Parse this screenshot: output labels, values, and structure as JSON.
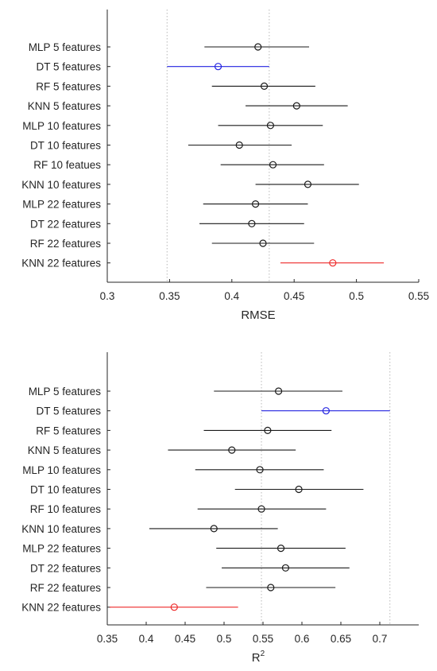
{
  "colors": {
    "default": "#1a1a1a",
    "highlight_best": "#2222e0",
    "highlight_worst": "#ee2a2a",
    "axis": "#262626",
    "reference_line": "#b8b8b8"
  },
  "chart_data": [
    {
      "type": "errorbar",
      "orientation": "horizontal",
      "xlabel": "RMSE",
      "xlim": [
        0.3,
        0.55
      ],
      "xticks": [
        "0.3",
        "0.35",
        "0.4",
        "0.45",
        "0.5",
        "0.55"
      ],
      "reference_lines": [
        0.348,
        0.43
      ],
      "categories": [
        "MLP 5 features",
        "DT 5 features",
        "RF 5 features",
        "KNN 5 features",
        "MLP 10 features",
        "DT 10 features",
        "RF 10 featues",
        "KNN 10 features",
        "MLP 22 features",
        "DT 22 features",
        "RF 22 features",
        "KNN 22 features"
      ],
      "means": [
        0.421,
        0.389,
        0.426,
        0.452,
        0.431,
        0.406,
        0.433,
        0.461,
        0.419,
        0.416,
        0.425,
        0.481
      ],
      "lower": [
        0.378,
        0.348,
        0.384,
        0.411,
        0.389,
        0.365,
        0.391,
        0.419,
        0.377,
        0.374,
        0.384,
        0.439
      ],
      "upper": [
        0.462,
        0.43,
        0.467,
        0.493,
        0.473,
        0.448,
        0.474,
        0.502,
        0.461,
        0.458,
        0.466,
        0.522
      ],
      "highlight": {
        "DT 5 features": "best",
        "KNN 22 features": "worst"
      }
    },
    {
      "type": "errorbar",
      "orientation": "horizontal",
      "xlabel": "R",
      "xlabel_superscript": "2",
      "xlim": [
        0.35,
        0.75
      ],
      "xticks": [
        "0.35",
        "0.4",
        "0.45",
        "0.5",
        "0.55",
        "0.6",
        "0.65",
        "0.7"
      ],
      "reference_lines": [
        0.548,
        0.713
      ],
      "categories": [
        "MLP 5 features",
        "DT 5 features",
        "RF 5 features",
        "KNN 5 features",
        "MLP 10 features",
        "DT 10 features",
        "RF 10 features",
        "KNN 10 features",
        "MLP 22 features",
        "DT 22 features",
        "RF 22 features",
        "KNN 22 features"
      ],
      "means": [
        0.57,
        0.631,
        0.556,
        0.51,
        0.546,
        0.596,
        0.548,
        0.487,
        0.573,
        0.579,
        0.56,
        0.436
      ],
      "lower": [
        0.487,
        0.548,
        0.474,
        0.428,
        0.463,
        0.514,
        0.466,
        0.404,
        0.49,
        0.497,
        0.477,
        0.353
      ],
      "upper": [
        0.652,
        0.713,
        0.638,
        0.592,
        0.628,
        0.679,
        0.631,
        0.569,
        0.656,
        0.661,
        0.643,
        0.518
      ],
      "highlight": {
        "DT 5 features": "best",
        "KNN 22 features": "worst"
      }
    }
  ]
}
